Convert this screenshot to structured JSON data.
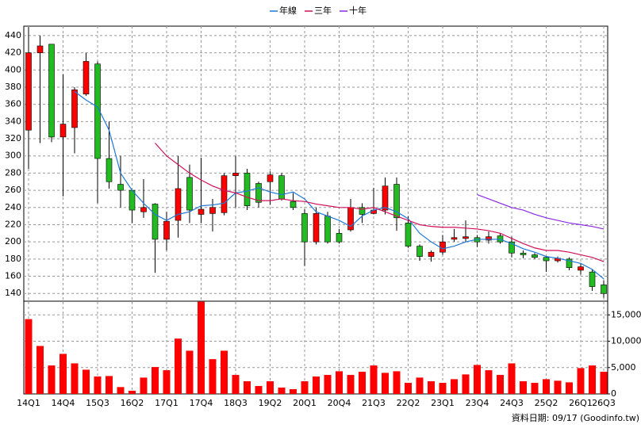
{
  "chart_data": {
    "type": "candlestick",
    "categories": [
      "14Q1",
      null,
      null,
      "14Q4",
      null,
      null,
      "15Q3",
      null,
      null,
      "16Q2",
      null,
      null,
      "17Q1",
      null,
      null,
      "17Q4",
      null,
      null,
      "18Q3",
      null,
      null,
      "19Q2",
      null,
      null,
      "20Q1",
      null,
      null,
      "20Q4",
      null,
      null,
      "21Q3",
      null,
      null,
      "22Q2",
      null,
      null,
      "23Q1",
      null,
      null,
      "23Q4",
      null,
      null,
      "24Q3",
      null,
      null,
      "25Q2",
      null,
      null,
      "26Q1",
      null,
      "26Q3"
    ],
    "open": [
      330,
      420,
      430,
      322,
      333,
      372,
      407,
      297,
      267,
      260,
      235,
      244,
      203,
      225,
      275,
      232,
      233,
      234,
      277,
      280,
      268,
      270,
      277,
      247,
      233,
      200,
      230,
      210,
      214,
      240,
      233,
      237,
      267,
      222,
      195,
      183,
      188,
      203,
      204,
      205,
      202,
      207,
      200,
      187,
      185,
      182,
      178,
      180,
      167,
      165,
      150
    ],
    "high": [
      450,
      440,
      430,
      395,
      380,
      420,
      410,
      340,
      300,
      260,
      273,
      245,
      235,
      300,
      290,
      298,
      250,
      280,
      300,
      285,
      270,
      282,
      280,
      257,
      238,
      240,
      235,
      215,
      250,
      245,
      263,
      275,
      275,
      230,
      197,
      190,
      208,
      215,
      225,
      208,
      212,
      210,
      206,
      190,
      187,
      183,
      183,
      182,
      175,
      168,
      155
    ],
    "low": [
      285,
      315,
      316,
      253,
      303,
      370,
      245,
      262,
      240,
      222,
      228,
      164,
      190,
      205,
      222,
      222,
      212,
      231,
      240,
      237,
      240,
      243,
      248,
      237,
      172,
      197,
      198,
      198,
      212,
      222,
      232,
      232,
      213,
      193,
      178,
      177,
      185,
      200,
      200,
      194,
      198,
      198,
      182,
      181,
      180,
      165,
      176,
      167,
      162,
      143,
      135
    ],
    "close": [
      420,
      428,
      322,
      337,
      377,
      410,
      297,
      270,
      260,
      237,
      240,
      203,
      224,
      262,
      237,
      238,
      240,
      277,
      280,
      242,
      246,
      278,
      250,
      240,
      200,
      233,
      200,
      200,
      240,
      232,
      237,
      265,
      228,
      195,
      183,
      188,
      200,
      205,
      206,
      200,
      206,
      200,
      187,
      185,
      182,
      178,
      181,
      170,
      171,
      148,
      140
    ],
    "up_color": "#ff0000",
    "down_color": "#22bb22",
    "volume": {
      "color": "#ff0000",
      "values": [
        14200,
        9100,
        5400,
        7600,
        5800,
        4600,
        3300,
        3400,
        1300,
        600,
        3100,
        5100,
        4500,
        10500,
        8200,
        17500,
        6600,
        8200,
        3600,
        2400,
        1500,
        2400,
        1200,
        900,
        2400,
        3300,
        3600,
        4300,
        3600,
        4200,
        5400,
        4000,
        4300,
        2100,
        3100,
        2400,
        2100,
        2800,
        3700,
        5500,
        4500,
        3600,
        5800,
        2400,
        2100,
        2800,
        2500,
        2200,
        4900,
        5400,
        4200
      ]
    },
    "series": [
      {
        "name": "年線",
        "color": "#1e78d7",
        "values": [
          null,
          null,
          null,
          null,
          375,
          365,
          357,
          330,
          280,
          260,
          245,
          232,
          225,
          232,
          235,
          242,
          243,
          245,
          257,
          259,
          263,
          258,
          255,
          258,
          250,
          235,
          230,
          225,
          218,
          230,
          237,
          240,
          235,
          227,
          210,
          200,
          192,
          195,
          200,
          203,
          203,
          203,
          198,
          192,
          188,
          183,
          181,
          178,
          175,
          168,
          157
        ]
      },
      {
        "name": "三年",
        "color": "#d0105a",
        "values": [
          null,
          null,
          null,
          null,
          null,
          null,
          null,
          null,
          null,
          null,
          null,
          315,
          300,
          290,
          280,
          272,
          265,
          260,
          257,
          252,
          248,
          248,
          250,
          248,
          247,
          244,
          242,
          240,
          240,
          238,
          240,
          235,
          230,
          225,
          220,
          218,
          217,
          217,
          216,
          215,
          213,
          210,
          204,
          198,
          193,
          190,
          190,
          188,
          185,
          182,
          177
        ]
      },
      {
        "name": "十年",
        "color": "#8a2be2",
        "values": [
          null,
          null,
          null,
          null,
          null,
          null,
          null,
          null,
          null,
          null,
          null,
          null,
          null,
          null,
          null,
          null,
          null,
          null,
          null,
          null,
          null,
          null,
          null,
          null,
          null,
          null,
          null,
          null,
          null,
          null,
          null,
          null,
          null,
          null,
          null,
          null,
          null,
          null,
          null,
          255,
          250,
          245,
          240,
          237,
          232,
          228,
          225,
          222,
          220,
          218,
          215
        ]
      }
    ],
    "ylim": [
      131,
      451
    ],
    "yticks": [
      140,
      160,
      180,
      200,
      220,
      240,
      260,
      280,
      300,
      320,
      340,
      360,
      380,
      400,
      420,
      440
    ],
    "y2lim": [
      0,
      17600
    ],
    "y2ticks": [
      0,
      {
        "value": 5000,
        "label": "5,000"
      },
      {
        "value": 10000,
        "label": "10,000"
      },
      {
        "value": 15000,
        "label": "15,000"
      }
    ],
    "grid": true,
    "footer": "資料日期: 09/17 (Goodinfo.tw)"
  }
}
